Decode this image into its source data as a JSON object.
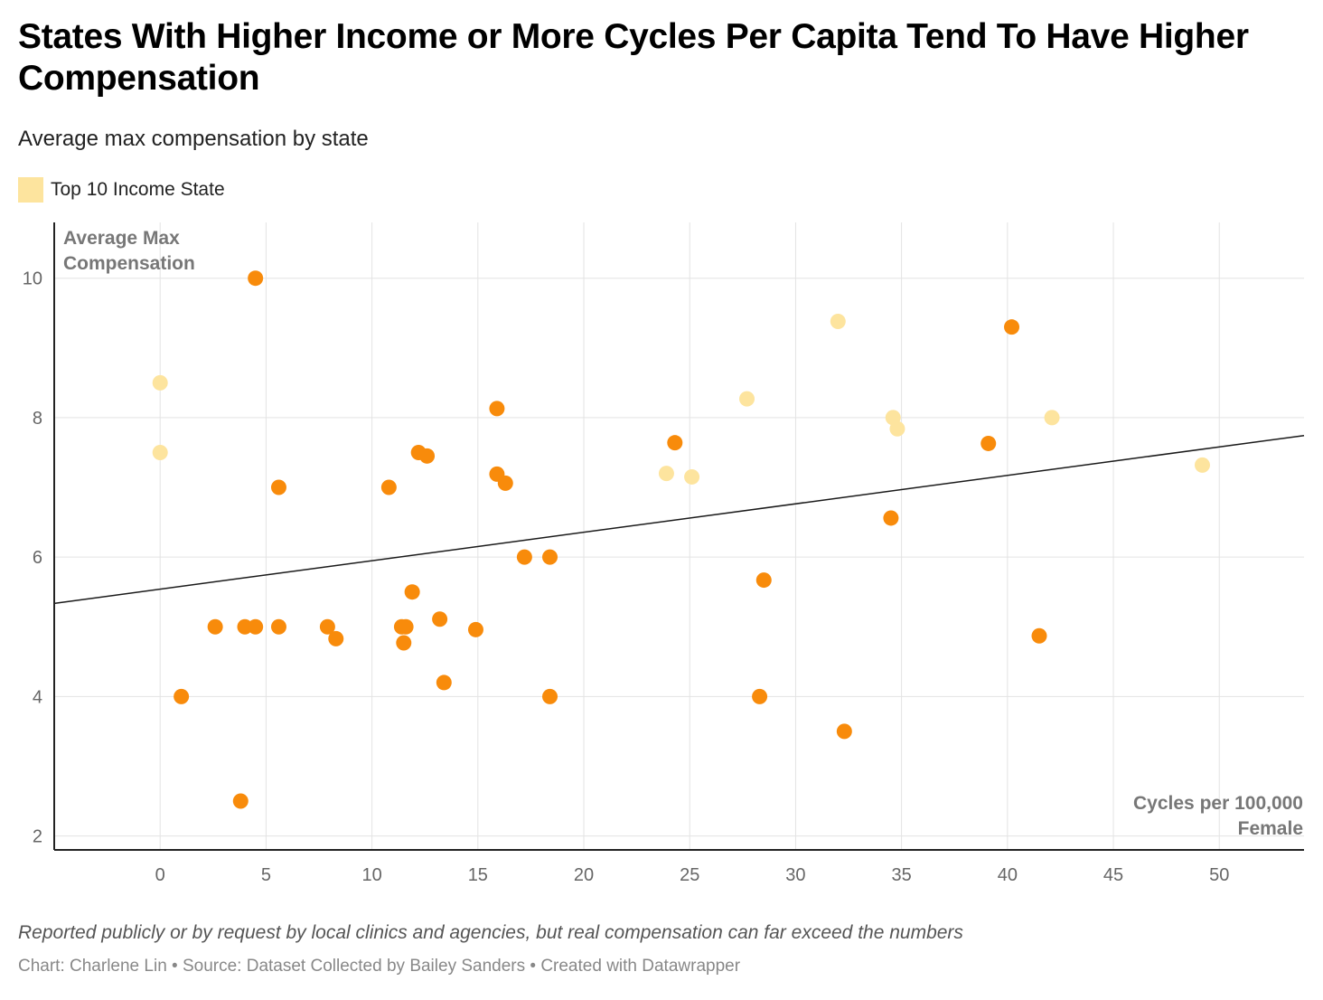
{
  "header": {
    "title": "States With Higher Income or More Cycles Per Capita Tend To Have Higher Compensation",
    "subtitle": "Average max compensation by state"
  },
  "legend": {
    "label": "Top 10 Income State",
    "color": "#fde49e"
  },
  "footer": {
    "note": "Reported publicly or by request by local clinics and agencies, but real compensation can far exceed the numbers",
    "byline": "Chart: Charlene Lin • Source: Dataset Collected by Bailey Sanders • Created with Datawrapper"
  },
  "colors": {
    "regular": "#f88b0b",
    "top_income": "#fde49e",
    "grid": "#e3e3e3",
    "axis": "#222222",
    "trendline": "#1a1a1a"
  },
  "chart_data": {
    "type": "scatter",
    "xlabel": "Cycles per 100,000 Female",
    "ylabel": "Average Max Compensation",
    "xlim": [
      -5,
      54
    ],
    "ylim": [
      1.8,
      10.8
    ],
    "x_ticks": [
      0,
      5,
      10,
      15,
      20,
      25,
      30,
      35,
      40,
      45,
      50
    ],
    "y_ticks": [
      2,
      4,
      6,
      8,
      10
    ],
    "grid": true,
    "legend_position": "top-left",
    "trendline": {
      "slope": 0.0408,
      "intercept": 5.54
    },
    "series": [
      {
        "name": "Top 10 Income State",
        "color": "#fde49e",
        "points": [
          {
            "x": 0,
            "y": 8.5
          },
          {
            "x": 0,
            "y": 7.5
          },
          {
            "x": 23.9,
            "y": 7.2
          },
          {
            "x": 25.1,
            "y": 7.15
          },
          {
            "x": 27.7,
            "y": 8.27
          },
          {
            "x": 32.0,
            "y": 9.38
          },
          {
            "x": 34.6,
            "y": 8.0
          },
          {
            "x": 34.8,
            "y": 7.84
          },
          {
            "x": 42.1,
            "y": 8.0
          },
          {
            "x": 49.2,
            "y": 7.32
          }
        ]
      },
      {
        "name": "",
        "color": "#f88b0b",
        "points": [
          {
            "x": 4.5,
            "y": 10.0
          },
          {
            "x": 1.0,
            "y": 4.0
          },
          {
            "x": 2.6,
            "y": 5.0
          },
          {
            "x": 3.8,
            "y": 2.5
          },
          {
            "x": 4.0,
            "y": 5.0
          },
          {
            "x": 4.5,
            "y": 5.0
          },
          {
            "x": 5.6,
            "y": 7.0
          },
          {
            "x": 5.6,
            "y": 5.0
          },
          {
            "x": 7.9,
            "y": 5.0
          },
          {
            "x": 8.3,
            "y": 4.83
          },
          {
            "x": 10.8,
            "y": 7.0
          },
          {
            "x": 11.4,
            "y": 5.0
          },
          {
            "x": 11.6,
            "y": 5.0
          },
          {
            "x": 11.5,
            "y": 4.77
          },
          {
            "x": 11.9,
            "y": 5.5
          },
          {
            "x": 12.2,
            "y": 7.5
          },
          {
            "x": 12.6,
            "y": 7.45
          },
          {
            "x": 13.2,
            "y": 5.11
          },
          {
            "x": 13.4,
            "y": 4.2
          },
          {
            "x": 14.9,
            "y": 4.96
          },
          {
            "x": 15.9,
            "y": 8.13
          },
          {
            "x": 15.9,
            "y": 7.19
          },
          {
            "x": 16.3,
            "y": 7.06
          },
          {
            "x": 17.2,
            "y": 6.0
          },
          {
            "x": 18.4,
            "y": 6.0
          },
          {
            "x": 18.4,
            "y": 4.0
          },
          {
            "x": 24.3,
            "y": 7.64
          },
          {
            "x": 28.3,
            "y": 4.0
          },
          {
            "x": 28.5,
            "y": 5.67
          },
          {
            "x": 32.3,
            "y": 3.5
          },
          {
            "x": 34.5,
            "y": 6.56
          },
          {
            "x": 39.1,
            "y": 7.63
          },
          {
            "x": 40.2,
            "y": 9.3
          },
          {
            "x": 41.5,
            "y": 4.87
          }
        ]
      }
    ]
  }
}
